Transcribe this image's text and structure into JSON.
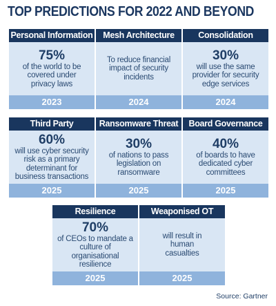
{
  "title": "TOP PREDICTIONS FOR 2022 AND BEYOND",
  "cards": [
    {
      "heading": "Personal Information",
      "percent": "75%",
      "text": "of the world to be covered under privacy laws",
      "year": "2023"
    },
    {
      "heading": "Mesh Architecture",
      "percent": "",
      "text": "To reduce financial impact of security incidents",
      "year": "2024"
    },
    {
      "heading": "Consolidation",
      "percent": "30%",
      "text": "will use the same provider for security edge services",
      "year": "2024"
    },
    {
      "heading": "Third Party",
      "percent": "60%",
      "text": "will use cyber security risk as a primary determinant for business transactions",
      "year": "2025"
    },
    {
      "heading": "Ransomware Threat",
      "percent": "30%",
      "text": "of nations to pass legislation on ransomware",
      "year": "2025"
    },
    {
      "heading": "Board Governance",
      "percent": "40%",
      "text": "of boards to have dedicated cyber committees",
      "year": "2025"
    },
    {
      "heading": "Resilience",
      "percent": "70%",
      "text": "of CEOs to mandate a culture of organisational resilience",
      "year": "2025"
    },
    {
      "heading": "Weaponised OT",
      "percent": "",
      "text": "will result in human casualties",
      "year": "2025"
    }
  ],
  "source": "Source: Gartner"
}
